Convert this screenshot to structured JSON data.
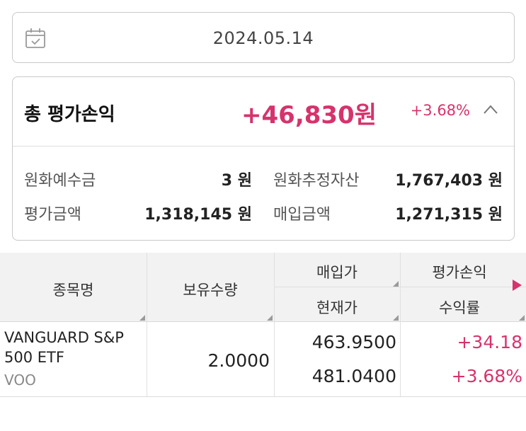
{
  "date": {
    "value": "2024.05.14"
  },
  "summary": {
    "title": "총 평가손익",
    "amount": "+46,830원",
    "rate": "+3.68%",
    "items": [
      {
        "label": "원화예수금",
        "value": "3 원"
      },
      {
        "label": "원화추정자산",
        "value": "1,767,403 원"
      },
      {
        "label": "평가금액",
        "value": "1,318,145 원"
      },
      {
        "label": "매입금액",
        "value": "1,271,315 원"
      }
    ]
  },
  "table": {
    "headers": {
      "name": "종목명",
      "quantity": "보유수량",
      "buy_price": "매입가",
      "current_price": "현재가",
      "profit": "평가손익",
      "return_rate": "수익률"
    },
    "rows": [
      {
        "name": "VANGUARD S&P 500 ETF",
        "code": "VOO",
        "quantity": "2.0000",
        "buy_price": "463.9500",
        "current_price": "481.0400",
        "profit": "+34.18",
        "return_rate": "+3.68%"
      }
    ]
  },
  "colors": {
    "accent": "#d6336c",
    "header_bg": "#f2f2f2",
    "border": "#c9c9c9"
  },
  "icons": [
    "calendar-icon",
    "chevron-up-icon",
    "play-arrow-icon"
  ]
}
